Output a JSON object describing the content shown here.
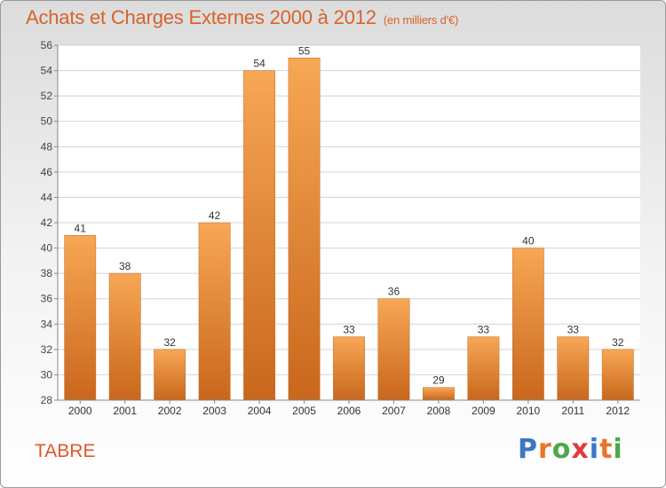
{
  "header": {
    "title": "Achats et Charges Externes 2000 à 2012",
    "subtitle": "(en milliers d'€)"
  },
  "commune": "TABRE",
  "logo": {
    "letters": [
      "P",
      "r",
      "o",
      "x",
      "i",
      "t",
      "i"
    ],
    "colors": [
      "#3a78c3",
      "#e8762b",
      "#4aa84a",
      "#e03a3a",
      "#3a78c3",
      "#e8762b",
      "#4aa84a"
    ]
  },
  "chart_data": {
    "type": "bar",
    "title": "Achats et Charges Externes 2000 à 2012",
    "subtitle": "(en milliers d'€)",
    "categories": [
      "2000",
      "2001",
      "2002",
      "2003",
      "2004",
      "2005",
      "2006",
      "2007",
      "2008",
      "2009",
      "2010",
      "2011",
      "2012"
    ],
    "values": [
      41,
      38,
      32,
      42,
      54,
      55,
      33,
      36,
      29,
      33,
      40,
      33,
      32
    ],
    "ylim": [
      28,
      56
    ],
    "yticks": [
      28,
      30,
      32,
      34,
      36,
      38,
      40,
      42,
      44,
      46,
      48,
      50,
      52,
      54,
      56
    ],
    "grid": true,
    "bar_color_top": "#f7a755",
    "bar_color_bottom": "#c9671c"
  }
}
